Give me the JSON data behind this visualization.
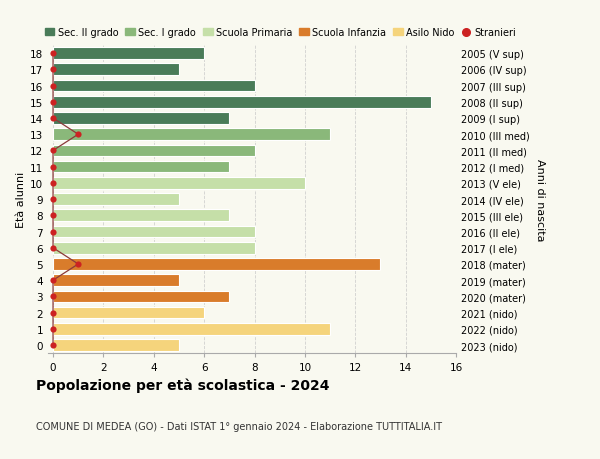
{
  "ages": [
    18,
    17,
    16,
    15,
    14,
    13,
    12,
    11,
    10,
    9,
    8,
    7,
    6,
    5,
    4,
    3,
    2,
    1,
    0
  ],
  "right_labels": [
    "2005 (V sup)",
    "2006 (IV sup)",
    "2007 (III sup)",
    "2008 (II sup)",
    "2009 (I sup)",
    "2010 (III med)",
    "2011 (II med)",
    "2012 (I med)",
    "2013 (V ele)",
    "2014 (IV ele)",
    "2015 (III ele)",
    "2016 (II ele)",
    "2017 (I ele)",
    "2018 (mater)",
    "2019 (mater)",
    "2020 (mater)",
    "2021 (nido)",
    "2022 (nido)",
    "2023 (nido)"
  ],
  "values": [
    6,
    5,
    8,
    15,
    7,
    11,
    8,
    7,
    10,
    5,
    7,
    8,
    8,
    13,
    5,
    7,
    6,
    11,
    5
  ],
  "stranieri": [
    0,
    0,
    0,
    0,
    0,
    1,
    0,
    0,
    0,
    0,
    0,
    0,
    0,
    1,
    0,
    0,
    0,
    0,
    0
  ],
  "bar_colors": [
    "#4a7c59",
    "#4a7c59",
    "#4a7c59",
    "#4a7c59",
    "#4a7c59",
    "#8ab87a",
    "#8ab87a",
    "#8ab87a",
    "#c5dfa8",
    "#c5dfa8",
    "#c5dfa8",
    "#c5dfa8",
    "#c5dfa8",
    "#d97c2b",
    "#d97c2b",
    "#d97c2b",
    "#f5d47c",
    "#f5d47c",
    "#f5d47c"
  ],
  "legend_labels": [
    "Sec. II grado",
    "Sec. I grado",
    "Scuola Primaria",
    "Scuola Infanzia",
    "Asilo Nido",
    "Stranieri"
  ],
  "legend_colors": [
    "#4a7c59",
    "#8ab87a",
    "#c5dfa8",
    "#d97c2b",
    "#f5d47c",
    "#cc2222"
  ],
  "stranieri_color": "#cc2222",
  "stranieri_line_color": "#8b3a3a",
  "title": "Popolazione per età scolastica - 2024",
  "subtitle": "COMUNE DI MEDEA (GO) - Dati ISTAT 1° gennaio 2024 - Elaborazione TUTTITALIA.IT",
  "ylabel_left": "Età alunni",
  "ylabel_right": "Anni di nascita",
  "xlim_min": -0.2,
  "xlim_max": 16,
  "ylim_min": -0.5,
  "ylim_max": 18.5,
  "xticks": [
    0,
    2,
    4,
    6,
    8,
    10,
    12,
    14,
    16
  ],
  "background_color": "#f9f9f0",
  "grid_color": "#cccccc",
  "bar_height": 0.72,
  "bar_edgecolor": "white",
  "bar_linewidth": 0.8
}
